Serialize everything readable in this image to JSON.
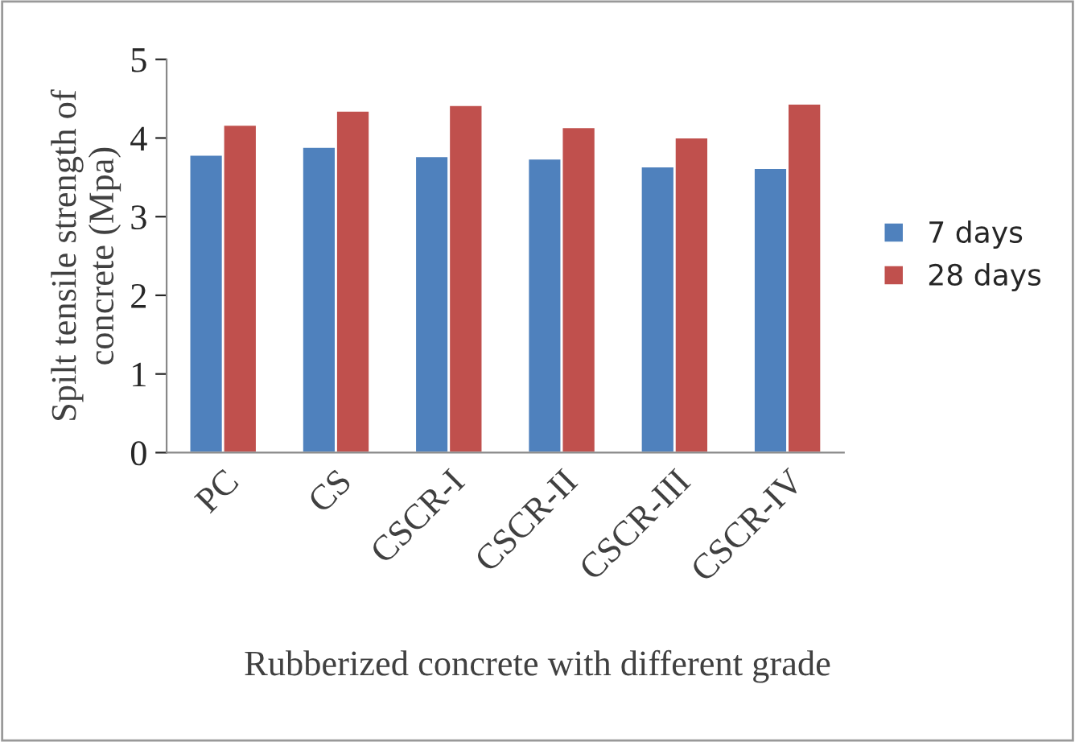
{
  "chart_data": {
    "type": "bar",
    "xlabel": "Rubberized concrete with different grade",
    "ylabel": "Spilt tensile strength of\nconcrete (Mpa)",
    "categories": [
      "PC",
      "CS",
      "CSCR-I",
      "CSCR-II",
      "CSCR-III",
      "CSCR-IV"
    ],
    "series": [
      {
        "name": "7 days",
        "color": "#4f81bd",
        "values": [
          3.79,
          3.89,
          3.77,
          3.74,
          3.64,
          3.62
        ]
      },
      {
        "name": "28 days",
        "color": "#c0504d",
        "values": [
          4.17,
          4.35,
          4.42,
          4.14,
          4.01,
          4.44
        ]
      }
    ],
    "ylim": [
      0,
      5
    ],
    "yticks": [
      0,
      1,
      2,
      3,
      4,
      5
    ],
    "grid": false,
    "legend": "right"
  }
}
